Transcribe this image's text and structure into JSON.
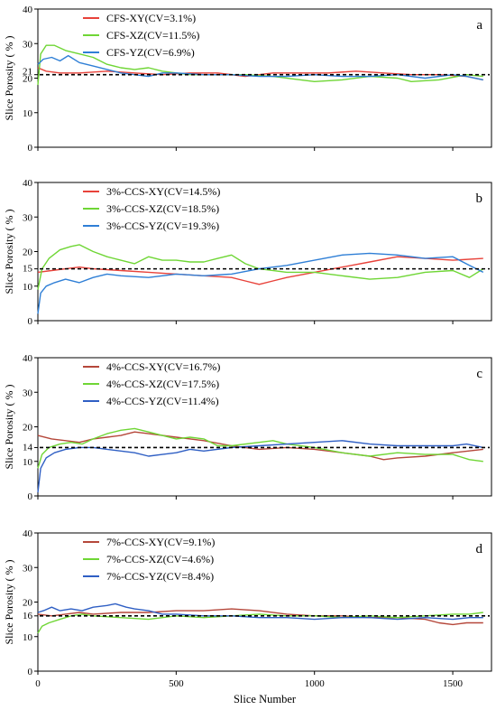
{
  "x_axis": {
    "label": "Slice Number",
    "ticks": [
      0,
      500,
      1000,
      1500
    ],
    "range": [
      0,
      1640
    ]
  },
  "chart_data": [
    {
      "type": "line",
      "tag": "a",
      "ylabel": "Slice Porosity ( % )",
      "ylim": [
        0,
        40
      ],
      "yticks": [
        0,
        10,
        20,
        30,
        40
      ],
      "extra_ticks": [
        21
      ],
      "baseline": 21,
      "series": [
        {
          "name": "CFS-XY(CV=3.1%)",
          "color": "#e8423a",
          "x": [
            0,
            30,
            80,
            150,
            250,
            350,
            450,
            550,
            650,
            750,
            850,
            950,
            1050,
            1150,
            1250,
            1350,
            1450,
            1550,
            1610
          ],
          "y": [
            23,
            22,
            21.5,
            21.5,
            22,
            21.5,
            21,
            21.5,
            21.5,
            20.5,
            21.5,
            21.5,
            21.5,
            22,
            21.5,
            21,
            21,
            20.5,
            19.5
          ]
        },
        {
          "name": "CFS-XZ(CV=11.5%)",
          "color": "#6fd635",
          "x": [
            0,
            10,
            30,
            60,
            100,
            150,
            200,
            250,
            300,
            350,
            400,
            450,
            500,
            550,
            650,
            750,
            850,
            950,
            1000,
            1100,
            1200,
            1300,
            1350,
            1450,
            1550,
            1610
          ],
          "y": [
            18,
            27,
            29.5,
            29.5,
            28,
            27,
            26,
            24,
            23,
            22.5,
            23,
            22,
            21.5,
            21,
            21,
            21,
            20.5,
            19.5,
            19,
            19.5,
            20.5,
            20,
            19,
            19.5,
            21,
            20.5
          ]
        },
        {
          "name": "CFS-YZ(CV=6.9%)",
          "color": "#2f7fd6",
          "x": [
            0,
            20,
            50,
            80,
            110,
            150,
            200,
            250,
            300,
            350,
            400,
            450,
            500,
            600,
            700,
            800,
            900,
            1000,
            1100,
            1200,
            1300,
            1400,
            1500,
            1550,
            1610
          ],
          "y": [
            24,
            25.5,
            26,
            25,
            26.5,
            24.5,
            23.5,
            22.5,
            21.5,
            21,
            20.5,
            21.5,
            21.5,
            21,
            21,
            20.5,
            20.5,
            21,
            20.5,
            20.5,
            21,
            20,
            21,
            20.5,
            19.5
          ]
        }
      ]
    },
    {
      "type": "line",
      "tag": "b",
      "ylabel": "Slice Porosity ( % )",
      "ylim": [
        0,
        40
      ],
      "yticks": [
        0,
        10,
        20,
        30,
        40
      ],
      "extra_ticks": [
        15
      ],
      "baseline": 15,
      "series": [
        {
          "name": "3%-CCS-XY(CV=14.5%)",
          "color": "#e8423a",
          "x": [
            0,
            50,
            100,
            150,
            200,
            300,
            400,
            500,
            600,
            700,
            750,
            800,
            850,
            900,
            1000,
            1100,
            1200,
            1300,
            1400,
            1500,
            1610
          ],
          "y": [
            14,
            14.5,
            15,
            15.5,
            15,
            14.5,
            14,
            13.5,
            13,
            12.5,
            11.5,
            10.5,
            11.5,
            12.5,
            14,
            15.5,
            17,
            18.5,
            18,
            17.5,
            18
          ]
        },
        {
          "name": "3%-CCS-XZ(CV=18.5%)",
          "color": "#6fd635",
          "x": [
            0,
            15,
            40,
            80,
            120,
            150,
            200,
            250,
            300,
            350,
            400,
            450,
            500,
            550,
            600,
            650,
            700,
            750,
            800,
            900,
            1000,
            1100,
            1200,
            1300,
            1400,
            1500,
            1560,
            1610
          ],
          "y": [
            9,
            15,
            18,
            20.5,
            21.5,
            22,
            20,
            18.5,
            17.5,
            16.5,
            18.5,
            17.5,
            17.5,
            17,
            17,
            18,
            19,
            16.5,
            15,
            14,
            14,
            13,
            12,
            12.5,
            14,
            14.5,
            12.5,
            15
          ]
        },
        {
          "name": "3%-CCS-YZ(CV=19.3%)",
          "color": "#2f7fd6",
          "x": [
            0,
            10,
            30,
            60,
            100,
            150,
            200,
            250,
            300,
            400,
            500,
            600,
            700,
            800,
            900,
            1000,
            1100,
            1200,
            1300,
            1400,
            1500,
            1560,
            1610
          ],
          "y": [
            2,
            8,
            10,
            11,
            12,
            11,
            12.5,
            13.5,
            13,
            12.5,
            13.5,
            13,
            13.5,
            15,
            16,
            17.5,
            19,
            19.5,
            19,
            18,
            18.5,
            16,
            14
          ]
        }
      ]
    },
    {
      "type": "line",
      "tag": "c",
      "ylabel": "Slice Porosity ( % )",
      "ylim": [
        0,
        40
      ],
      "yticks": [
        0,
        10,
        20,
        30,
        40
      ],
      "extra_ticks": [
        14
      ],
      "baseline": 14,
      "series": [
        {
          "name": "4%-CCS-XY(CV=16.7%)",
          "color": "#b5473a",
          "x": [
            0,
            50,
            100,
            150,
            200,
            250,
            300,
            350,
            400,
            500,
            600,
            700,
            800,
            900,
            1000,
            1100,
            1200,
            1250,
            1300,
            1400,
            1500,
            1610
          ],
          "y": [
            17.5,
            16.5,
            16,
            15.5,
            16.5,
            17,
            17.5,
            18.5,
            18,
            17,
            16,
            14.5,
            13.5,
            14,
            13.5,
            12.5,
            11.5,
            10.5,
            11,
            11.5,
            12.5,
            13.5
          ]
        },
        {
          "name": "4%-CCS-XZ(CV=17.5%)",
          "color": "#6fd635",
          "x": [
            0,
            15,
            40,
            80,
            120,
            160,
            200,
            250,
            300,
            350,
            400,
            450,
            500,
            550,
            600,
            650,
            700,
            800,
            850,
            900,
            1000,
            1100,
            1200,
            1300,
            1400,
            1500,
            1560,
            1610
          ],
          "y": [
            8,
            12,
            14,
            15,
            15.5,
            15,
            16.5,
            18,
            19,
            19.5,
            18.5,
            17.5,
            16.5,
            17,
            16.5,
            14.5,
            14.5,
            15.5,
            16,
            15,
            14,
            12.5,
            11.5,
            12.5,
            12,
            12,
            10.5,
            10
          ]
        },
        {
          "name": "4%-CCS-YZ(CV=11.4%)",
          "color": "#2f5fc4",
          "x": [
            0,
            10,
            30,
            60,
            100,
            150,
            200,
            250,
            300,
            350,
            400,
            450,
            500,
            550,
            600,
            700,
            800,
            900,
            1000,
            1100,
            1200,
            1300,
            1400,
            1500,
            1550,
            1610
          ],
          "y": [
            1,
            8,
            11,
            12.5,
            13.5,
            14,
            14,
            13.5,
            13,
            12.5,
            11.5,
            12,
            12.5,
            13.5,
            13,
            14,
            14.5,
            15,
            15.5,
            16,
            15,
            14.5,
            14.5,
            14.5,
            15,
            14
          ]
        }
      ]
    },
    {
      "type": "line",
      "tag": "d",
      "ylabel": "Slice Porosity ( % )",
      "ylim": [
        0,
        40
      ],
      "yticks": [
        0,
        10,
        20,
        30,
        40
      ],
      "extra_ticks": [
        16
      ],
      "baseline": 16,
      "series": [
        {
          "name": "7%-CCS-XY(CV=9.1%)",
          "color": "#b5473a",
          "x": [
            0,
            50,
            100,
            150,
            200,
            300,
            400,
            500,
            600,
            700,
            800,
            900,
            1000,
            1100,
            1200,
            1300,
            1400,
            1450,
            1500,
            1550,
            1610
          ],
          "y": [
            16.5,
            16,
            16.5,
            17,
            16.5,
            17,
            17,
            17.5,
            17.5,
            18,
            17.5,
            16.5,
            16,
            16,
            15.5,
            15.5,
            15,
            14,
            13.5,
            14,
            14
          ]
        },
        {
          "name": "7%-CCS-XZ(CV=4.6%)",
          "color": "#6fd635",
          "x": [
            0,
            15,
            40,
            80,
            120,
            160,
            200,
            300,
            400,
            500,
            600,
            700,
            800,
            900,
            1000,
            1100,
            1200,
            1300,
            1400,
            1500,
            1560,
            1610
          ],
          "y": [
            11,
            13,
            14,
            15,
            16,
            16.5,
            16,
            15.5,
            15,
            16,
            15.5,
            16,
            16.5,
            16,
            16,
            15.5,
            16,
            15.5,
            16,
            16.5,
            16.5,
            17
          ]
        },
        {
          "name": "7%-CCS-YZ(CV=8.4%)",
          "color": "#2f5fc4",
          "x": [
            0,
            20,
            50,
            80,
            120,
            160,
            200,
            250,
            280,
            320,
            350,
            400,
            450,
            500,
            600,
            700,
            800,
            900,
            1000,
            1100,
            1200,
            1300,
            1400,
            1500,
            1560,
            1610
          ],
          "y": [
            17,
            17.5,
            18.5,
            17.5,
            18,
            17.5,
            18.5,
            19,
            19.5,
            18.5,
            18,
            17.5,
            16.5,
            16.5,
            16,
            16,
            15.5,
            15.5,
            15,
            15.5,
            15.5,
            15,
            15.5,
            15,
            15.5,
            15.5
          ]
        }
      ]
    }
  ]
}
